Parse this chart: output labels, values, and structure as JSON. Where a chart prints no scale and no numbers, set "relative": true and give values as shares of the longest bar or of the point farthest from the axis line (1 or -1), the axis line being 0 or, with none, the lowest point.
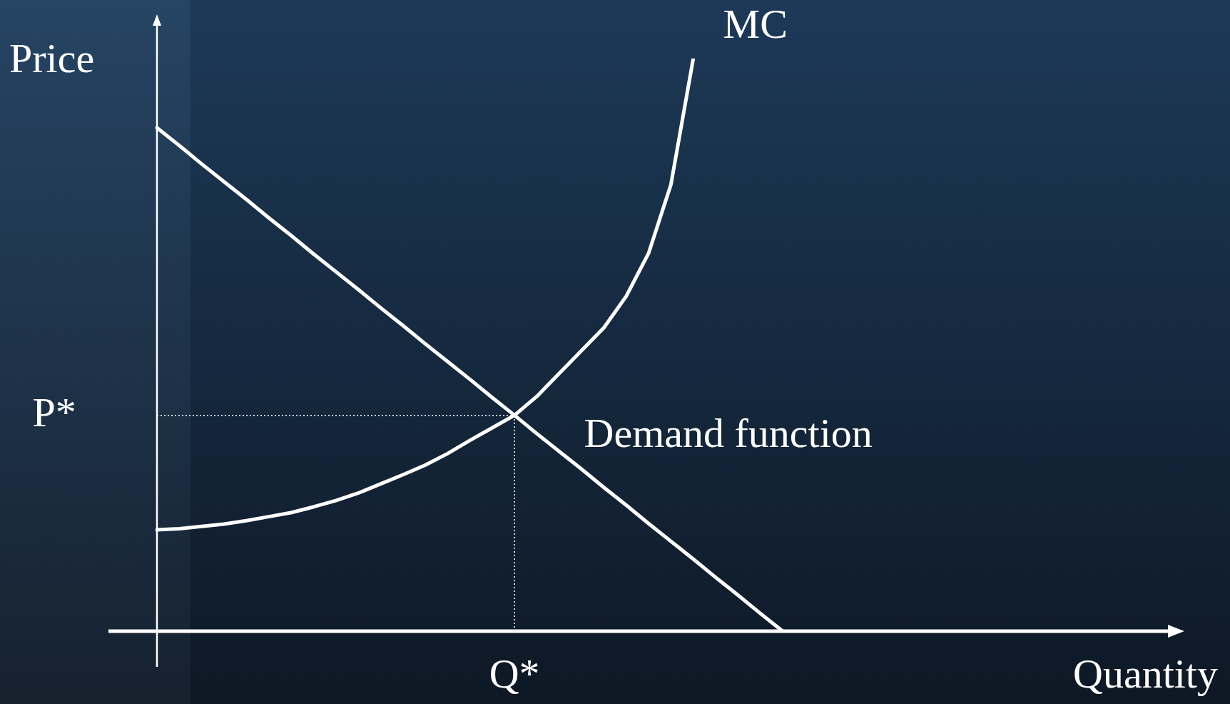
{
  "chart_data": {
    "type": "line",
    "relative": true,
    "annotations": [
      "Quantity"
    ],
    "ylabel": "Price",
    "legend": false,
    "grid": false,
    "marker": "none",
    "line_style": "solid",
    "categories": [
      null,
      null,
      null,
      null,
      null,
      null,
      null,
      null,
      null,
      null,
      null,
      null,
      null,
      null,
      null,
      null,
      null,
      null,
      null,
      null,
      null,
      null,
      null,
      null,
      null,
      null,
      null,
      null,
      null
    ],
    "series": [
      {
        "name": "MC",
        "color": "#ffffff",
        "values": [
          0.177,
          0.179,
          0.183,
          0.187,
          0.193,
          0.2,
          0.207,
          0.217,
          0.228,
          0.241,
          0.257,
          0.273,
          0.29,
          0.31,
          0.333,
          0.355,
          0.377,
          0.41,
          0.45,
          0.49,
          0.53,
          0.585,
          0.66,
          0.78,
          1,
          null,
          null,
          null,
          null
        ]
      },
      {
        "name": "Demand function",
        "color": "#ffffff",
        "values": [
          0.879,
          0.848,
          0.816,
          0.785,
          0.754,
          0.722,
          0.691,
          0.659,
          0.628,
          0.597,
          0.565,
          0.534,
          0.502,
          0.471,
          0.44,
          0.408,
          0.377,
          0.345,
          0.314,
          0.283,
          0.251,
          0.22,
          0.188,
          0.157,
          0.126,
          0.094,
          0.063,
          0.031,
          0
        ]
      }
    ],
    "ref_lines": [
      {
        "axis": "x",
        "label": "Q*",
        "line_style": "dotted"
      },
      {
        "axis": "y",
        "value": 0.377,
        "label": "P*",
        "line_style": "dotted"
      }
    ]
  }
}
